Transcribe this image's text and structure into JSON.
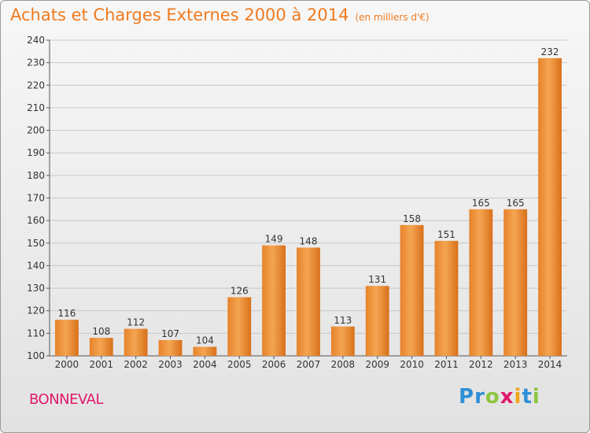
{
  "header": {
    "title": "Achats et Charges Externes 2000 à 2014",
    "unit": "(en milliers d'€)"
  },
  "footer": {
    "place": "BONNEVAL",
    "logo_letters": [
      "P",
      "r",
      "o",
      "x",
      "i",
      "t",
      "i"
    ],
    "logo_colors": [
      "#2e8fd6",
      "#2e8fd6",
      "#8cc63f",
      "#e0186b",
      "#f2a51a",
      "#2e8fd6",
      "#8cc63f"
    ]
  },
  "colors": {
    "bar": "#f08a2c",
    "bar_light": "#f5a85a",
    "bar_dark": "#d9701a",
    "grid": "#c8c8c8",
    "accent": "#f07a1e"
  },
  "chart_data": {
    "type": "bar",
    "title": "Achats et Charges Externes 2000 à 2014",
    "subtitle": "(en milliers d'€)",
    "categories": [
      "2000",
      "2001",
      "2002",
      "2003",
      "2004",
      "2005",
      "2006",
      "2007",
      "2008",
      "2009",
      "2010",
      "2011",
      "2012",
      "2013",
      "2014"
    ],
    "values": [
      116,
      108,
      112,
      107,
      104,
      126,
      149,
      148,
      113,
      131,
      158,
      151,
      165,
      165,
      232
    ],
    "ylim": [
      100,
      240
    ],
    "yticks": [
      100,
      110,
      120,
      130,
      140,
      150,
      160,
      170,
      180,
      190,
      200,
      210,
      220,
      230,
      240
    ],
    "grid": true,
    "data_labels": true
  }
}
